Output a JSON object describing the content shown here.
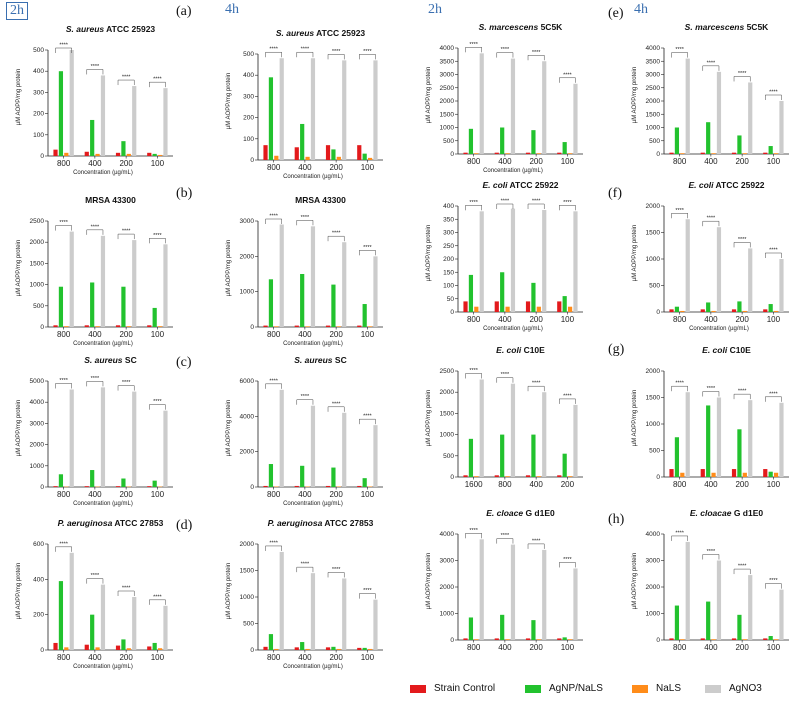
{
  "headers": {
    "time_left_2h": "2h",
    "time_left_4h": "4h",
    "time_right_2h": "2h",
    "time_right_4h": "4h"
  },
  "panel_labels": [
    "(a)",
    "(b)",
    "(c)",
    "(d)",
    "(e)",
    "(f)",
    "(g)",
    "(h)"
  ],
  "legend": [
    {
      "name": "Strain Control",
      "color": "#e31a1c"
    },
    {
      "name": "AgNP/NaLS",
      "color": "#22c22e"
    },
    {
      "name": "NaLS",
      "color": "#ff8c1a"
    },
    {
      "name": "AgNO3",
      "color": "#cccccc"
    }
  ],
  "series_colors": [
    "#e31a1c",
    "#22c22e",
    "#ff8c1a",
    "#cccccc"
  ],
  "chart_data": [
    {
      "type": "bar",
      "title_italic": "S. aureus",
      "title_rest": " ATCC 25923",
      "ylabel": "µM AOPP/mg protein",
      "xlabel": "Concentration (µg/mL)",
      "categories": [
        "800",
        "400",
        "200",
        "100"
      ],
      "ylim": [
        0,
        500
      ],
      "yticks": [
        "0",
        "100",
        "200",
        "300",
        "400",
        "500"
      ],
      "series": [
        {
          "name": "Strain Control",
          "values": [
            30,
            20,
            15,
            15
          ]
        },
        {
          "name": "AgNP/NaLS",
          "values": [
            400,
            170,
            70,
            10
          ]
        },
        {
          "name": "NaLS",
          "values": [
            15,
            10,
            10,
            5
          ]
        },
        {
          "name": "AgNO3",
          "values": [
            500,
            380,
            330,
            320
          ]
        }
      ],
      "sig": [
        "****",
        "****",
        "****",
        "****"
      ]
    },
    {
      "type": "bar",
      "title_italic": "S. aureus",
      "title_rest": " ATCC 25923",
      "ylabel": "µM AOPP/mg protein",
      "xlabel": "Concentration (µg/mL)",
      "categories": [
        "800",
        "400",
        "200",
        "100"
      ],
      "ylim": [
        0,
        500
      ],
      "yticks": [
        "0",
        "100",
        "200",
        "300",
        "400",
        "500"
      ],
      "series": [
        {
          "name": "Strain Control",
          "values": [
            70,
            60,
            70,
            70
          ]
        },
        {
          "name": "AgNP/NaLS",
          "values": [
            390,
            170,
            50,
            30
          ]
        },
        {
          "name": "NaLS",
          "values": [
            20,
            15,
            15,
            10
          ]
        },
        {
          "name": "AgNO3",
          "values": [
            480,
            480,
            470,
            470
          ]
        }
      ],
      "sig": [
        "****",
        "****",
        "****",
        "****"
      ]
    },
    {
      "type": "bar",
      "title_italic": "",
      "title_rest": "MRSA 43300",
      "ylabel": "µM AOPP/mg protein",
      "xlabel": "Concentration (µg/mL)",
      "categories": [
        "800",
        "400",
        "200",
        "100"
      ],
      "ylim": [
        0,
        2500
      ],
      "yticks": [
        "0",
        "500",
        "1000",
        "1500",
        "2000",
        "2500"
      ],
      "series": [
        {
          "name": "Strain Control",
          "values": [
            40,
            40,
            40,
            40
          ]
        },
        {
          "name": "AgNP/NaLS",
          "values": [
            950,
            1050,
            950,
            450
          ]
        },
        {
          "name": "NaLS",
          "values": [
            20,
            20,
            20,
            20
          ]
        },
        {
          "name": "AgNO3",
          "values": [
            2250,
            2150,
            2050,
            1950
          ]
        }
      ],
      "sig": [
        "****",
        "****",
        "****",
        "****"
      ]
    },
    {
      "type": "bar",
      "title_italic": "",
      "title_rest": "MRSA 43300",
      "ylabel": "µM AOPP/mg protein",
      "xlabel": "Concentration (µg/mL)",
      "categories": [
        "800",
        "400",
        "200",
        "100"
      ],
      "ylim": [
        0,
        3000
      ],
      "yticks": [
        "0",
        "1000",
        "2000",
        "3000"
      ],
      "series": [
        {
          "name": "Strain Control",
          "values": [
            40,
            40,
            40,
            40
          ]
        },
        {
          "name": "AgNP/NaLS",
          "values": [
            1350,
            1500,
            1200,
            650
          ]
        },
        {
          "name": "NaLS",
          "values": [
            20,
            20,
            20,
            20
          ]
        },
        {
          "name": "AgNO3",
          "values": [
            2900,
            2850,
            2400,
            2000
          ]
        }
      ],
      "sig": [
        "****",
        "****",
        "****",
        "****"
      ]
    },
    {
      "type": "bar",
      "title_italic": "S. aureus",
      "title_rest": " SC",
      "ylabel": "µM AOPP/mg protein",
      "xlabel": "Concentration (µg/mL)",
      "categories": [
        "800",
        "400",
        "200",
        "100"
      ],
      "ylim": [
        0,
        5000
      ],
      "yticks": [
        "0",
        "1000",
        "2000",
        "3000",
        "4000",
        "5000"
      ],
      "series": [
        {
          "name": "Strain Control",
          "values": [
            40,
            40,
            40,
            40
          ]
        },
        {
          "name": "AgNP/NaLS",
          "values": [
            600,
            800,
            400,
            300
          ]
        },
        {
          "name": "NaLS",
          "values": [
            20,
            20,
            20,
            20
          ]
        },
        {
          "name": "AgNO3",
          "values": [
            4600,
            4700,
            4500,
            3600
          ]
        }
      ],
      "sig": [
        "****",
        "****",
        "****",
        "****"
      ]
    },
    {
      "type": "bar",
      "title_italic": "S. aureus",
      "title_rest": " SC",
      "ylabel": "µM AOPP/mg protein",
      "xlabel": "Concentration (µg/mL)",
      "categories": [
        "800",
        "400",
        "200",
        "100"
      ],
      "ylim": [
        0,
        6000
      ],
      "yticks": [
        "0",
        "2000",
        "4000",
        "6000"
      ],
      "series": [
        {
          "name": "Strain Control",
          "values": [
            60,
            60,
            60,
            60
          ]
        },
        {
          "name": "AgNP/NaLS",
          "values": [
            1300,
            1200,
            1100,
            500
          ]
        },
        {
          "name": "NaLS",
          "values": [
            30,
            30,
            30,
            30
          ]
        },
        {
          "name": "AgNO3",
          "values": [
            5500,
            4600,
            4200,
            3500
          ]
        }
      ],
      "sig": [
        "****",
        "****",
        "****",
        "****"
      ]
    },
    {
      "type": "bar",
      "title_italic": "P. aeruginosa",
      "title_rest": " ATCC 27853",
      "ylabel": "µM AOPP/mg protein",
      "xlabel": "Concentration (µg/mL)",
      "categories": [
        "800",
        "400",
        "200",
        "100"
      ],
      "ylim": [
        0,
        600
      ],
      "yticks": [
        "0",
        "200",
        "400",
        "600"
      ],
      "series": [
        {
          "name": "Strain Control",
          "values": [
            40,
            30,
            25,
            20
          ]
        },
        {
          "name": "AgNP/NaLS",
          "values": [
            390,
            200,
            60,
            40
          ]
        },
        {
          "name": "NaLS",
          "values": [
            15,
            15,
            10,
            10
          ]
        },
        {
          "name": "AgNO3",
          "values": [
            550,
            370,
            300,
            250
          ]
        }
      ],
      "sig": [
        "****",
        "****",
        "****",
        "****"
      ]
    },
    {
      "type": "bar",
      "title_italic": "P. aeruginosa",
      "title_rest": " ATCC 27853",
      "ylabel": "µM AOPP/mg protein",
      "xlabel": "Concentration (µg/mL)",
      "categories": [
        "800",
        "400",
        "200",
        "100"
      ],
      "ylim": [
        0,
        2000
      ],
      "yticks": [
        "0",
        "500",
        "1000",
        "1500",
        "2000"
      ],
      "series": [
        {
          "name": "Strain Control",
          "values": [
            60,
            50,
            50,
            40
          ]
        },
        {
          "name": "AgNP/NaLS",
          "values": [
            300,
            150,
            60,
            40
          ]
        },
        {
          "name": "NaLS",
          "values": [
            20,
            20,
            20,
            20
          ]
        },
        {
          "name": "AgNO3",
          "values": [
            1850,
            1450,
            1350,
            950
          ]
        }
      ],
      "sig": [
        "****",
        "****",
        "****",
        "****"
      ]
    },
    {
      "type": "bar",
      "title_italic": "S. marcescens",
      "title_rest": " 5C5K",
      "ylabel": "µM AOPP/mg protein",
      "xlabel": "Concentration (µg/mL)",
      "categories": [
        "800",
        "400",
        "200",
        "100"
      ],
      "ylim": [
        0,
        4000
      ],
      "yticks": [
        "0",
        "500",
        "1000",
        "1500",
        "2000",
        "2500",
        "3000",
        "3500",
        "4000"
      ],
      "series": [
        {
          "name": "Strain Control",
          "values": [
            50,
            50,
            50,
            50
          ]
        },
        {
          "name": "AgNP/NaLS",
          "values": [
            950,
            1000,
            900,
            450
          ]
        },
        {
          "name": "NaLS",
          "values": [
            30,
            30,
            30,
            30
          ]
        },
        {
          "name": "AgNO3",
          "values": [
            3800,
            3600,
            3500,
            2650
          ]
        }
      ],
      "sig": [
        "****",
        "****",
        "****",
        "****"
      ]
    },
    {
      "type": "bar",
      "title_italic": "S. marcescens",
      "title_rest": " 5C5K",
      "ylabel": "µM AOPP/mg protein",
      "xlabel": "",
      "categories": [
        "800",
        "400",
        "200",
        "100"
      ],
      "ylim": [
        0,
        4000
      ],
      "yticks": [
        "0",
        "500",
        "1000",
        "1500",
        "2000",
        "2500",
        "3000",
        "3500",
        "4000"
      ],
      "series": [
        {
          "name": "Strain Control",
          "values": [
            50,
            50,
            50,
            50
          ]
        },
        {
          "name": "AgNP/NaLS",
          "values": [
            1000,
            1200,
            700,
            300
          ]
        },
        {
          "name": "NaLS",
          "values": [
            30,
            30,
            30,
            30
          ]
        },
        {
          "name": "AgNO3",
          "values": [
            3600,
            3100,
            2700,
            2000
          ]
        }
      ],
      "sig": [
        "****",
        "****",
        "****",
        "****"
      ]
    },
    {
      "type": "bar",
      "title_italic": "E. coli",
      "title_rest": " ATCC 25922",
      "ylabel": "µM AOPP/mg protein",
      "xlabel": "Concentration (µg/mL)",
      "categories": [
        "800",
        "400",
        "200",
        "100"
      ],
      "ylim": [
        0,
        400
      ],
      "yticks": [
        "0",
        "50",
        "100",
        "150",
        "200",
        "250",
        "300",
        "350",
        "400"
      ],
      "series": [
        {
          "name": "Strain Control",
          "values": [
            40,
            40,
            40,
            40
          ]
        },
        {
          "name": "AgNP/NaLS",
          "values": [
            140,
            150,
            110,
            60
          ]
        },
        {
          "name": "NaLS",
          "values": [
            20,
            20,
            20,
            20
          ]
        },
        {
          "name": "AgNO3",
          "values": [
            380,
            390,
            385,
            380
          ]
        }
      ],
      "sig": [
        "****",
        "****",
        "****",
        "****"
      ]
    },
    {
      "type": "bar",
      "title_italic": "E. coli",
      "title_rest": " ATCC 25922",
      "ylabel": "µM AOPP/mg protein",
      "xlabel": "Concentration (µg/mL)",
      "categories": [
        "800",
        "400",
        "200",
        "100"
      ],
      "ylim": [
        0,
        2000
      ],
      "yticks": [
        "0",
        "500",
        "1000",
        "1500",
        "2000"
      ],
      "series": [
        {
          "name": "Strain Control",
          "values": [
            50,
            50,
            50,
            50
          ]
        },
        {
          "name": "AgNP/NaLS",
          "values": [
            100,
            180,
            200,
            150
          ]
        },
        {
          "name": "NaLS",
          "values": [
            20,
            20,
            20,
            20
          ]
        },
        {
          "name": "AgNO3",
          "values": [
            1750,
            1600,
            1200,
            1000
          ]
        }
      ],
      "sig": [
        "****",
        "****",
        "****",
        "****"
      ]
    },
    {
      "type": "bar",
      "title_italic": "E. coli",
      "title_rest": " C10E",
      "ylabel": "µM AOPP/mg protein",
      "xlabel": "",
      "categories": [
        "1600",
        "800",
        "400",
        "200"
      ],
      "ylim": [
        0,
        2500
      ],
      "yticks": [
        "0",
        "500",
        "1000",
        "1500",
        "2000",
        "2500"
      ],
      "series": [
        {
          "name": "Strain Control",
          "values": [
            40,
            40,
            40,
            40
          ]
        },
        {
          "name": "AgNP/NaLS",
          "values": [
            900,
            1000,
            1000,
            550
          ]
        },
        {
          "name": "NaLS",
          "values": [
            20,
            20,
            20,
            20
          ]
        },
        {
          "name": "AgNO3",
          "values": [
            2300,
            2200,
            2000,
            1700
          ]
        }
      ],
      "sig": [
        "****",
        "****",
        "****",
        "****"
      ]
    },
    {
      "type": "bar",
      "title_italic": "E. coli",
      "title_rest": " C10E",
      "ylabel": "µM AOPP/mg protein",
      "xlabel": "",
      "categories": [
        "800",
        "400",
        "200",
        "100"
      ],
      "ylim": [
        0,
        2000
      ],
      "yticks": [
        "0",
        "500",
        "1000",
        "1500",
        "2000"
      ],
      "series": [
        {
          "name": "Strain Control",
          "values": [
            150,
            150,
            150,
            150
          ]
        },
        {
          "name": "AgNP/NaLS",
          "values": [
            750,
            1350,
            900,
            100
          ]
        },
        {
          "name": "NaLS",
          "values": [
            80,
            80,
            80,
            80
          ]
        },
        {
          "name": "AgNO3",
          "values": [
            1600,
            1500,
            1450,
            1400
          ]
        }
      ],
      "sig": [
        "****",
        "****",
        "****",
        "****"
      ]
    },
    {
      "type": "bar",
      "title_italic": "E. cloace",
      "title_rest": " G d1E0",
      "ylabel": "µM AOPP/mg protein",
      "xlabel": "",
      "categories": [
        "800",
        "400",
        "200",
        "100"
      ],
      "ylim": [
        0,
        4000
      ],
      "yticks": [
        "0",
        "1000",
        "2000",
        "3000",
        "4000"
      ],
      "series": [
        {
          "name": "Strain Control",
          "values": [
            60,
            60,
            60,
            60
          ]
        },
        {
          "name": "AgNP/NaLS",
          "values": [
            850,
            950,
            750,
            100
          ]
        },
        {
          "name": "NaLS",
          "values": [
            30,
            30,
            30,
            30
          ]
        },
        {
          "name": "AgNO3",
          "values": [
            3800,
            3600,
            3400,
            2700
          ]
        }
      ],
      "sig": [
        "****",
        "****",
        "****",
        "****"
      ]
    },
    {
      "type": "bar",
      "title_italic": "E. cloacae",
      "title_rest": " G d1E0",
      "ylabel": "µM AOPP/mg protein",
      "xlabel": "",
      "categories": [
        "800",
        "400",
        "200",
        "100"
      ],
      "ylim": [
        0,
        4000
      ],
      "yticks": [
        "0",
        "1000",
        "2000",
        "3000",
        "4000"
      ],
      "series": [
        {
          "name": "Strain Control",
          "values": [
            60,
            60,
            60,
            60
          ]
        },
        {
          "name": "AgNP/NaLS",
          "values": [
            1300,
            1450,
            950,
            150
          ]
        },
        {
          "name": "NaLS",
          "values": [
            30,
            30,
            30,
            30
          ]
        },
        {
          "name": "AgNO3",
          "values": [
            3700,
            3000,
            2450,
            1900
          ]
        }
      ],
      "sig": [
        "****",
        "****",
        "****",
        "****"
      ]
    }
  ]
}
